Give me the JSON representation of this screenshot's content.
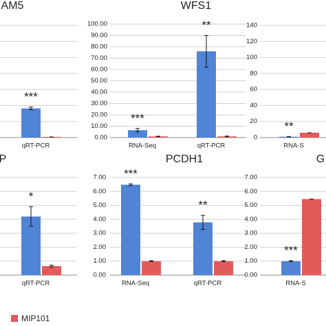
{
  "chart_data": [
    {
      "type": "bar",
      "title": "AM5",
      "categories": [
        "qRT-PCR"
      ],
      "series": [
        {
          "color": "#4f84d6",
          "values": [
            13
          ],
          "errors": [
            0.6
          ]
        },
        {
          "name": "MIP101",
          "color": "#e35a5a",
          "values": [
            0.3
          ],
          "errors": [
            0
          ]
        }
      ],
      "stars": [
        "***"
      ],
      "ylim": [
        0,
        50
      ],
      "yticks": [],
      "grid": true
    },
    {
      "type": "bar",
      "title": "WFS1",
      "categories": [
        "RNA-Seq",
        "qRT-PCR"
      ],
      "series": [
        {
          "color": "#4f84d6",
          "values": [
            6.5,
            76
          ],
          "errors": [
            1.5,
            14
          ]
        },
        {
          "name": "MIP101",
          "color": "#e35a5a",
          "values": [
            1,
            1
          ],
          "errors": [
            0.2,
            0.3
          ]
        }
      ],
      "stars": [
        "***",
        "**"
      ],
      "ylim": [
        0,
        100
      ],
      "yticks": [
        {
          "value": 0,
          "label": "0.00"
        },
        {
          "value": 10,
          "label": "10.00"
        },
        {
          "value": 20,
          "label": "20.00"
        },
        {
          "value": 30,
          "label": "30.00"
        },
        {
          "value": 40,
          "label": "40.00"
        },
        {
          "value": 50,
          "label": "50.00"
        },
        {
          "value": 60,
          "label": "60.00"
        },
        {
          "value": 70,
          "label": "70.00"
        },
        {
          "value": 80,
          "label": "80.00"
        },
        {
          "value": 90,
          "label": "90.00"
        },
        {
          "value": 100,
          "label": "100.00"
        }
      ],
      "grid": true
    },
    {
      "type": "bar",
      "title": "",
      "categories": [
        "RNA-S"
      ],
      "series": [
        {
          "color": "#4f84d6",
          "values": [
            1
          ],
          "errors": [
            0.2
          ]
        },
        {
          "name": "MIP101",
          "color": "#e35a5a",
          "values": [
            6
          ],
          "errors": [
            0
          ]
        }
      ],
      "stars": [
        "**"
      ],
      "ylim": [
        0,
        140
      ],
      "yticks": [
        0,
        20,
        40,
        60,
        80,
        100,
        120,
        140
      ],
      "grid": true
    },
    {
      "type": "bar",
      "title": "P",
      "categories": [
        "qRT-PCR"
      ],
      "series": [
        {
          "color": "#4f84d6",
          "values": [
            3
          ],
          "errors": [
            0.5
          ]
        },
        {
          "name": "MIP101",
          "color": "#e35a5a",
          "values": [
            0.46
          ],
          "errors": [
            0.05
          ]
        }
      ],
      "stars": [
        "*"
      ],
      "ylim": [
        0,
        5
      ],
      "yticks": [],
      "grid": true
    },
    {
      "type": "bar",
      "title": "PCDH1",
      "categories": [
        "RNA-Seq",
        "qRT-PCR"
      ],
      "series": [
        {
          "color": "#4f84d6",
          "values": [
            6.48,
            3.78
          ],
          "errors": [
            0.06,
            0.5
          ]
        },
        {
          "name": "MIP101",
          "color": "#e35a5a",
          "values": [
            1,
            1
          ],
          "errors": [
            0.04,
            0.04
          ]
        }
      ],
      "stars": [
        "***",
        "**"
      ],
      "ylim": [
        0,
        7
      ],
      "yticks": [
        {
          "value": 0,
          "label": "0.00"
        },
        {
          "value": 1,
          "label": "1.00"
        },
        {
          "value": 2,
          "label": "2.00"
        },
        {
          "value": 3,
          "label": "3.00"
        },
        {
          "value": 4,
          "label": "4.00"
        },
        {
          "value": 5,
          "label": "5.00"
        },
        {
          "value": 6,
          "label": "6.00"
        },
        {
          "value": 7,
          "label": "7.00"
        }
      ],
      "grid": true
    },
    {
      "type": "bar",
      "title": "G",
      "categories": [
        "RNA-S"
      ],
      "series": [
        {
          "color": "#4f84d6",
          "values": [
            1
          ],
          "errors": [
            0.04
          ]
        },
        {
          "name": "MIP101",
          "color": "#e35a5a",
          "values": [
            5.45
          ],
          "errors": [
            0
          ]
        }
      ],
      "stars": [
        "***"
      ],
      "ylim": [
        0,
        7
      ],
      "yticks": [
        {
          "value": 0,
          "label": "0.00"
        },
        {
          "value": 1,
          "label": "1.00"
        },
        {
          "value": 2,
          "label": "2.00"
        },
        {
          "value": 3,
          "label": "3.00"
        },
        {
          "value": 4,
          "label": "4.00"
        },
        {
          "value": 5,
          "label": "5.00"
        },
        {
          "value": 6,
          "label": "6.00"
        },
        {
          "value": 7,
          "label": "7.00"
        }
      ],
      "grid": true
    }
  ]
}
